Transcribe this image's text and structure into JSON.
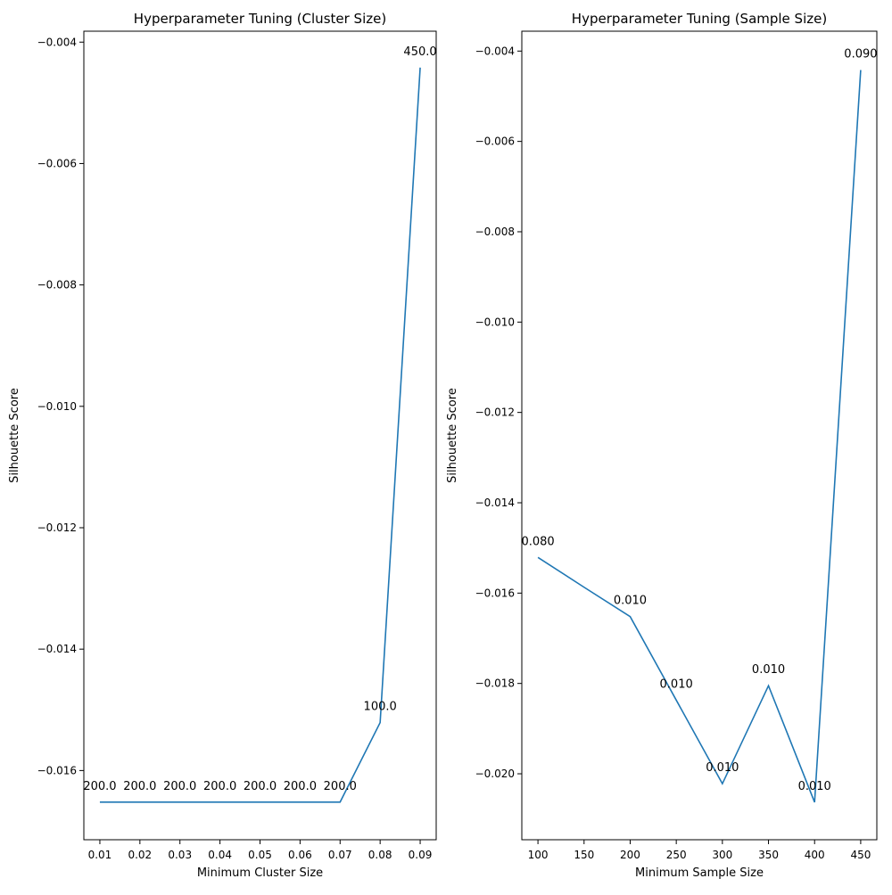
{
  "colors": {
    "line": "#1f77b4",
    "axis": "#000000",
    "background": "#ffffff"
  },
  "chart_data": [
    {
      "type": "line",
      "title": "Hyperparameter Tuning (Cluster Size)",
      "xlabel": "Minimum Cluster Size",
      "ylabel": "Silhouette Score",
      "xlim": [
        0.006,
        0.094
      ],
      "ylim": [
        -0.01714,
        -0.00382
      ],
      "grid": false,
      "legend": "none",
      "xticks": [
        0.01,
        0.02,
        0.03,
        0.04,
        0.05,
        0.06,
        0.07,
        0.08,
        0.09
      ],
      "xtick_labels": [
        "0.01",
        "0.02",
        "0.03",
        "0.04",
        "0.05",
        "0.06",
        "0.07",
        "0.08",
        "0.09"
      ],
      "yticks": [
        -0.016,
        -0.014,
        -0.012,
        -0.01,
        -0.008,
        -0.006,
        -0.004
      ],
      "ytick_labels": [
        "−0.016",
        "−0.014",
        "−0.012",
        "−0.010",
        "−0.008",
        "−0.006",
        "−0.004"
      ],
      "x": [
        0.01,
        0.02,
        0.03,
        0.04,
        0.05,
        0.06,
        0.07,
        0.08,
        0.09
      ],
      "y": [
        -0.01652,
        -0.01652,
        -0.01652,
        -0.01652,
        -0.01652,
        -0.01652,
        -0.01652,
        -0.01521,
        -0.00442
      ],
      "point_labels": [
        "200.0",
        "200.0",
        "200.0",
        "200.0",
        "200.0",
        "200.0",
        "200.0",
        "100.0",
        "450.0"
      ]
    },
    {
      "type": "line",
      "title": "Hyperparameter Tuning (Sample Size)",
      "xlabel": "Minimum Sample Size",
      "ylabel": "Silhouette Score",
      "xlim": [
        82.5,
        467.5
      ],
      "ylim": [
        -0.02146,
        -0.00356
      ],
      "grid": false,
      "legend": "none",
      "xticks": [
        100,
        150,
        200,
        250,
        300,
        350,
        400,
        450
      ],
      "xtick_labels": [
        "100",
        "150",
        "200",
        "250",
        "300",
        "350",
        "400",
        "450"
      ],
      "yticks": [
        -0.02,
        -0.018,
        -0.016,
        -0.014,
        -0.012,
        -0.01,
        -0.008,
        -0.006,
        -0.004
      ],
      "ytick_labels": [
        "−0.020",
        "−0.018",
        "−0.016",
        "−0.014",
        "−0.012",
        "−0.010",
        "−0.008",
        "−0.006",
        "−0.004"
      ],
      "x": [
        100,
        150,
        200,
        250,
        300,
        350,
        400,
        450
      ],
      "y": [
        -0.01521,
        -0.01587,
        -0.01652,
        -0.01837,
        -0.02022,
        -0.01805,
        -0.02063,
        -0.00442
      ],
      "point_labels": [
        "0.080",
        "",
        "0.010",
        "0.010",
        "0.010",
        "0.010",
        "0.010",
        "0.090"
      ]
    }
  ]
}
